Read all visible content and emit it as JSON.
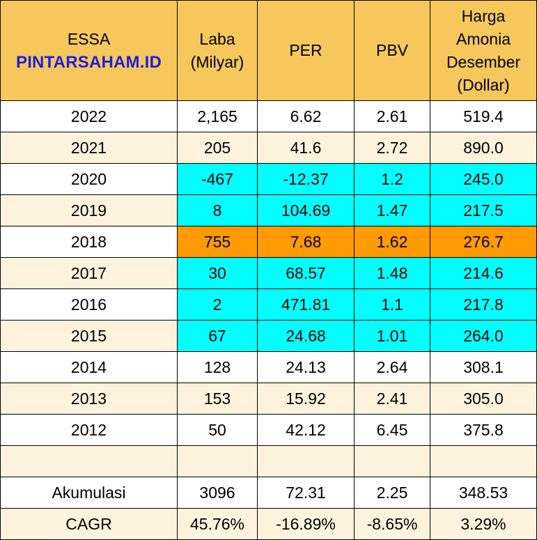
{
  "header": {
    "ticker": "ESSA",
    "brand": "PINTARSAHAM.ID",
    "col_laba": [
      "Laba",
      "(Milyar)"
    ],
    "col_per": "PER",
    "col_pbv": "PBV",
    "col_harga": [
      "Harga",
      "Amonia",
      "Desember",
      "(Dollar)"
    ]
  },
  "highlight_colors": {
    "cyan": "#00ffff",
    "orange": "#ff9a00",
    "header": "#f6c75a",
    "stripe": "#fdf3dc"
  },
  "rows": [
    {
      "year": "2022",
      "laba": "2,165",
      "per": "6.62",
      "pbv": "2.61",
      "harga": "519.4",
      "highlight": ""
    },
    {
      "year": "2021",
      "laba": "205",
      "per": "41.6",
      "pbv": "2.72",
      "harga": "890.0",
      "highlight": ""
    },
    {
      "year": "2020",
      "laba": "-467",
      "per": "-12.37",
      "pbv": "1.2",
      "harga": "245.0",
      "highlight": "cyan"
    },
    {
      "year": "2019",
      "laba": "8",
      "per": "104.69",
      "pbv": "1.47",
      "harga": "217.5",
      "highlight": "cyan"
    },
    {
      "year": "2018",
      "laba": "755",
      "per": "7.68",
      "pbv": "1.62",
      "harga": "276.7",
      "highlight": "orange"
    },
    {
      "year": "2017",
      "laba": "30",
      "per": "68.57",
      "pbv": "1.48",
      "harga": "214.6",
      "highlight": "cyan"
    },
    {
      "year": "2016",
      "laba": "2",
      "per": "471.81",
      "pbv": "1.1",
      "harga": "217.8",
      "highlight": "cyan"
    },
    {
      "year": "2015",
      "laba": "67",
      "per": "24.68",
      "pbv": "1.01",
      "harga": "264.0",
      "highlight": "cyan"
    },
    {
      "year": "2014",
      "laba": "128",
      "per": "24.13",
      "pbv": "2.64",
      "harga": "308.1",
      "highlight": ""
    },
    {
      "year": "2013",
      "laba": "153",
      "per": "15.92",
      "pbv": "2.41",
      "harga": "305.0",
      "highlight": ""
    },
    {
      "year": "2012",
      "laba": "50",
      "per": "42.12",
      "pbv": "6.45",
      "harga": "375.8",
      "highlight": ""
    },
    {
      "year": "",
      "laba": "",
      "per": "",
      "pbv": "",
      "harga": "",
      "highlight": ""
    },
    {
      "year": "Akumulasi",
      "laba": "3096",
      "per": "72.31",
      "pbv": "2.25",
      "harga": "348.53",
      "highlight": ""
    },
    {
      "year": "CAGR",
      "laba": "45.76%",
      "per": "-16.89%",
      "pbv": "-8.65%",
      "harga": "3.29%",
      "highlight": ""
    }
  ]
}
